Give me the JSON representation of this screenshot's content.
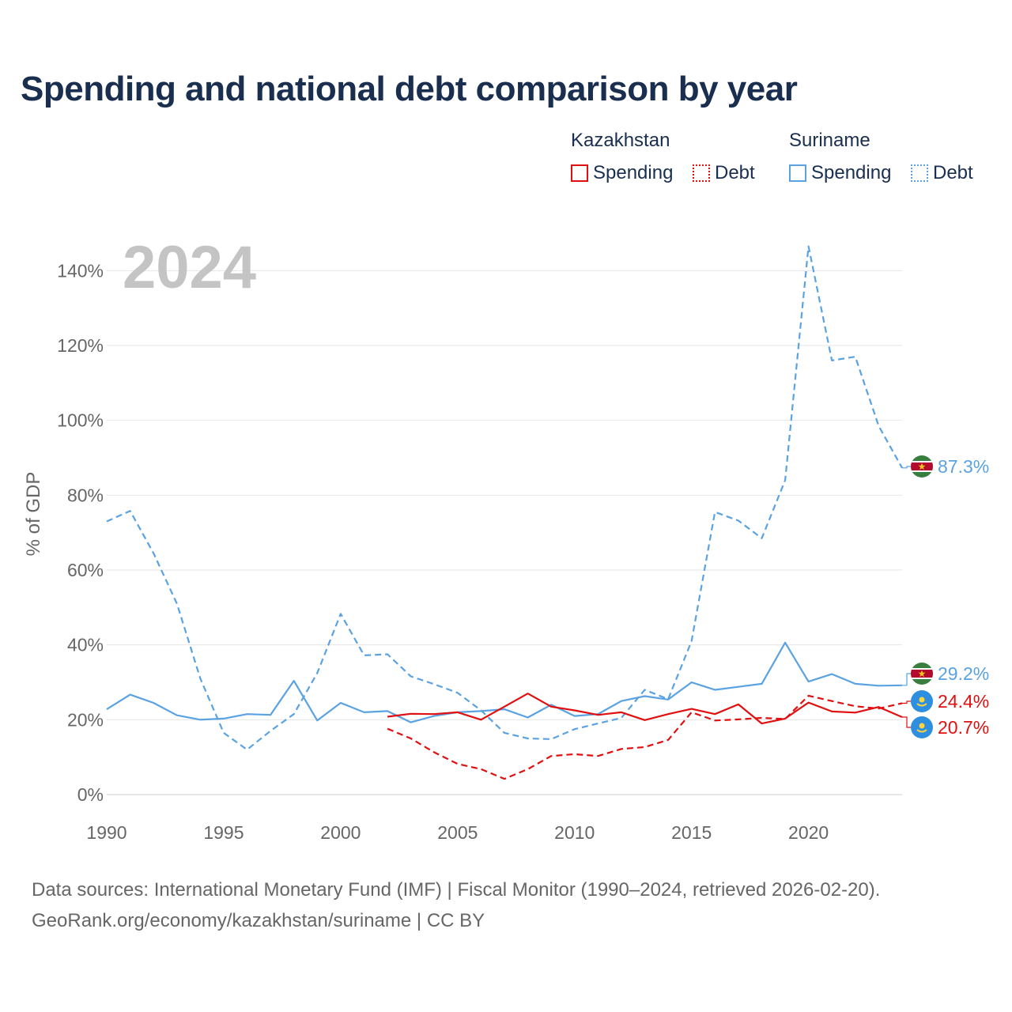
{
  "title": "Spending and national debt comparison by year",
  "legend": {
    "groups": [
      {
        "country": "Kazakhstan",
        "color": "#e01010",
        "items": [
          {
            "label": "Spending",
            "style": "solid"
          },
          {
            "label": "Debt",
            "style": "dotted"
          }
        ]
      },
      {
        "country": "Suriname",
        "color": "#5aa2e2",
        "items": [
          {
            "label": "Spending",
            "style": "solid"
          },
          {
            "label": "Debt",
            "style": "dotted"
          }
        ]
      }
    ]
  },
  "year_label": "2024",
  "footer": {
    "line1": "Data sources: International Monetary Fund (IMF) | Fiscal Monitor (1990–2024, retrieved 2026-02-20).",
    "line2": "GeoRank.org/economy/kazakhstan/suriname | CC BY"
  },
  "chart_data": {
    "type": "line",
    "title": "Spending and national debt comparison by year",
    "xlabel": "",
    "ylabel": "% of GDP",
    "xlim": [
      1990,
      2024
    ],
    "ylim": [
      0,
      150
    ],
    "xticks": [
      1990,
      1995,
      2000,
      2005,
      2010,
      2015,
      2020
    ],
    "yticks": [
      0,
      20,
      40,
      60,
      80,
      100,
      120,
      140
    ],
    "ytick_labels": [
      "0%",
      "20%",
      "40%",
      "60%",
      "80%",
      "100%",
      "120%",
      "140%"
    ],
    "grid": true,
    "series": [
      {
        "name": "Suriname Debt",
        "country": "Suriname",
        "metric": "Debt",
        "color": "#5aa2e2",
        "dash": "dashed",
        "x": [
          1990,
          1991,
          1992,
          1993,
          1994,
          1995,
          1996,
          1997,
          1998,
          1999,
          2000,
          2001,
          2002,
          2003,
          2004,
          2005,
          2006,
          2007,
          2008,
          2009,
          2010,
          2011,
          2012,
          2013,
          2014,
          2015,
          2016,
          2017,
          2018,
          2019,
          2020,
          2021,
          2022,
          2023,
          2024
        ],
        "values": [
          73.0,
          75.8,
          64.5,
          51.0,
          31.0,
          16.5,
          12.0,
          17.0,
          21.5,
          32.5,
          48.3,
          37.2,
          37.5,
          31.6,
          29.5,
          27.2,
          22.5,
          16.5,
          15.0,
          14.8,
          17.5,
          19.0,
          20.5,
          28.0,
          25.5,
          41.0,
          75.5,
          73.2,
          68.5,
          84.0,
          146.5,
          116.0,
          117.0,
          98.5,
          87.3
        ],
        "end_label": "87.3%"
      },
      {
        "name": "Suriname Spending",
        "country": "Suriname",
        "metric": "Spending",
        "color": "#5aa2e2",
        "dash": "solid",
        "x": [
          1990,
          1991,
          1992,
          1993,
          1994,
          1995,
          1996,
          1997,
          1998,
          1999,
          2000,
          2001,
          2002,
          2003,
          2004,
          2005,
          2006,
          2007,
          2008,
          2009,
          2010,
          2011,
          2012,
          2013,
          2014,
          2015,
          2016,
          2017,
          2018,
          2019,
          2020,
          2021,
          2022,
          2023,
          2024
        ],
        "values": [
          22.8,
          26.7,
          24.5,
          21.2,
          20.0,
          20.3,
          21.5,
          21.3,
          30.4,
          19.8,
          24.5,
          22.0,
          22.3,
          19.3,
          21.0,
          22.0,
          22.3,
          22.8,
          20.6,
          24.0,
          21.0,
          21.5,
          25.0,
          26.3,
          25.4,
          30.0,
          28.0,
          28.8,
          29.6,
          40.6,
          30.2,
          32.2,
          29.6,
          29.1,
          29.2
        ],
        "end_label": "29.2%"
      },
      {
        "name": "Kazakhstan Debt",
        "country": "Kazakhstan",
        "metric": "Debt",
        "color": "#e01010",
        "dash": "dashed",
        "x": [
          2002,
          2003,
          2004,
          2005,
          2006,
          2007,
          2008,
          2009,
          2010,
          2011,
          2012,
          2013,
          2014,
          2015,
          2016,
          2017,
          2018,
          2019,
          2020,
          2021,
          2022,
          2023,
          2024
        ],
        "values": [
          17.6,
          15.0,
          11.3,
          8.2,
          6.8,
          4.2,
          6.8,
          10.3,
          10.8,
          10.3,
          12.2,
          12.7,
          14.6,
          22.0,
          19.8,
          20.1,
          20.5,
          20.2,
          26.4,
          25.0,
          23.6,
          23.0,
          24.4
        ],
        "end_label": "24.4%"
      },
      {
        "name": "Kazakhstan Spending",
        "country": "Kazakhstan",
        "metric": "Spending",
        "color": "#e01010",
        "dash": "solid",
        "x": [
          2002,
          2003,
          2004,
          2005,
          2006,
          2007,
          2008,
          2009,
          2010,
          2011,
          2012,
          2013,
          2014,
          2015,
          2016,
          2017,
          2018,
          2019,
          2020,
          2021,
          2022,
          2023,
          2024
        ],
        "values": [
          20.8,
          21.6,
          21.5,
          22.0,
          20.0,
          23.5,
          27.0,
          23.5,
          22.5,
          21.3,
          22.0,
          19.9,
          21.5,
          22.9,
          21.5,
          24.1,
          19.0,
          20.3,
          24.6,
          22.2,
          21.9,
          23.4,
          20.7
        ],
        "end_label": "20.7%"
      }
    ]
  }
}
